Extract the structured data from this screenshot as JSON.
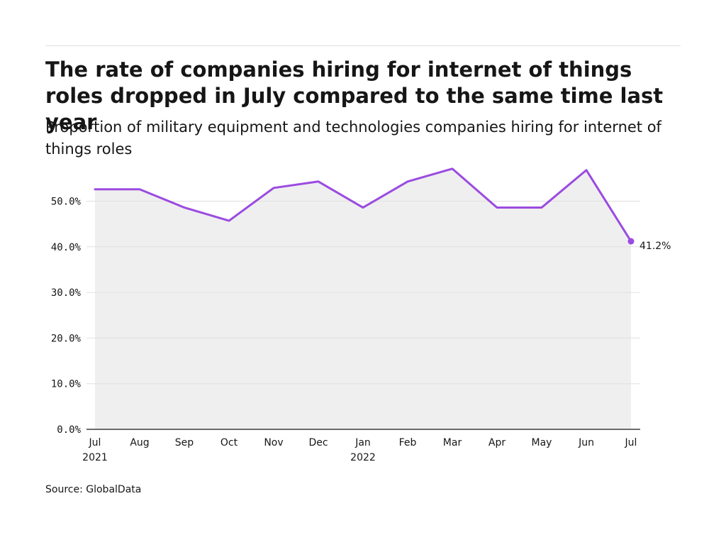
{
  "header": {
    "title": "The rate of companies hiring for internet of things roles dropped in July compared to the same time last year",
    "subtitle": "Proportion of military equipment and technologies companies hiring for internet of things roles"
  },
  "footer": {
    "source": "Source: GlobalData"
  },
  "colors": {
    "line": "#9b4be0",
    "area": "#efefef",
    "grid": "#e0e0e0",
    "axis": "#161616"
  },
  "chart_data": {
    "type": "line",
    "title": "The rate of companies hiring for internet of things roles dropped in July compared to the same time last year",
    "subtitle": "Proportion of military equipment and technologies companies hiring for internet of things roles",
    "categories": [
      "Jul 2021",
      "Aug 2021",
      "Sep 2021",
      "Oct 2021",
      "Nov 2021",
      "Dec 2021",
      "Jan 2022",
      "Feb 2022",
      "Mar 2022",
      "Apr 2022",
      "May 2022",
      "Jun 2022",
      "Jul 2022"
    ],
    "x_tick_labels": [
      [
        "Jul",
        "2021"
      ],
      [
        "Aug"
      ],
      [
        "Sep"
      ],
      [
        "Oct"
      ],
      [
        "Nov"
      ],
      [
        "Dec"
      ],
      [
        "Jan",
        "2022"
      ],
      [
        "Feb"
      ],
      [
        "Mar"
      ],
      [
        "Apr"
      ],
      [
        "May"
      ],
      [
        "Jun"
      ],
      [
        "Jul"
      ]
    ],
    "series": [
      {
        "values": [
          52.6,
          52.6,
          48.6,
          45.7,
          52.9,
          54.3,
          48.6,
          54.3,
          57.1,
          48.6,
          48.6,
          56.8,
          41.2
        ]
      }
    ],
    "y_ticks": [
      "0.0%",
      "10.0%",
      "20.0%",
      "30.0%",
      "40.0%",
      "50.0%"
    ],
    "y_tick_values": [
      0,
      10,
      20,
      30,
      40,
      50
    ],
    "ylim": [
      0,
      58
    ],
    "end_label": "41.2%",
    "grid": true,
    "area_fill": true,
    "source": "Source: GlobalData"
  }
}
